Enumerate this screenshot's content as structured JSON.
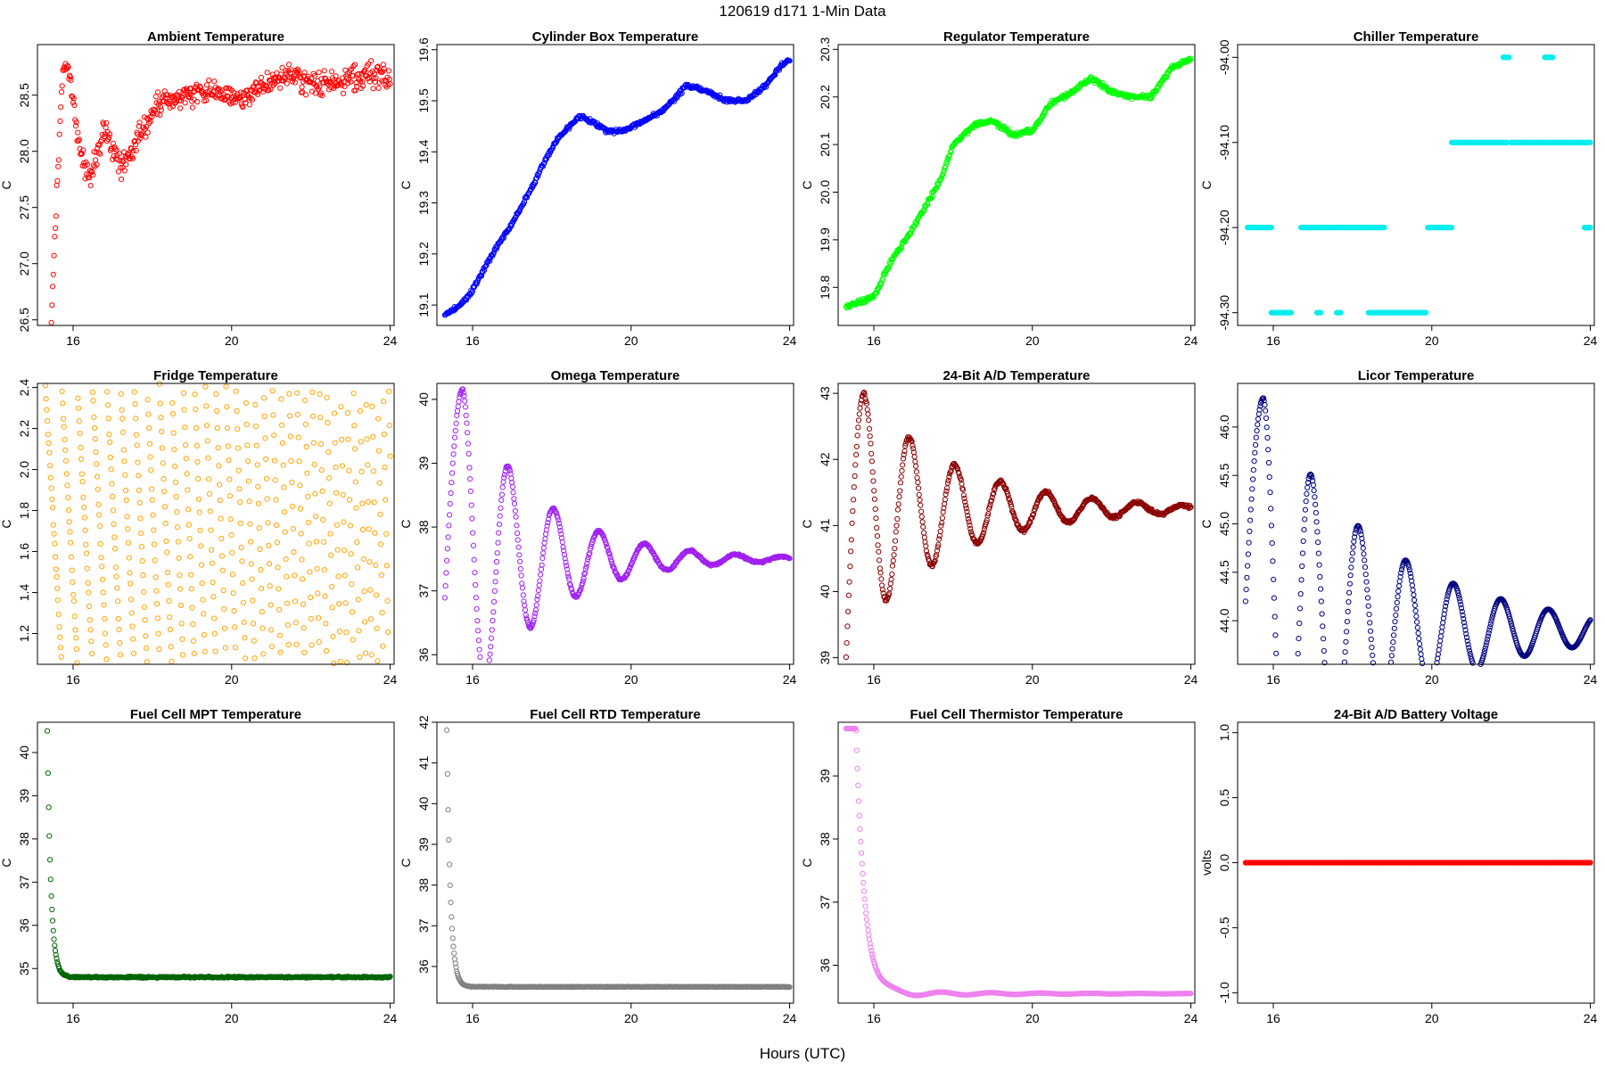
{
  "figure": {
    "title": "120619   d171   1-Min Data",
    "xlabel": "Hours (UTC)"
  },
  "chart_data": [
    {
      "type": "scatter",
      "title": "Ambient Temperature",
      "ylabel": "C",
      "color": "#ff0000",
      "xlim": [
        15.1,
        24.1
      ],
      "ylim": [
        26.45,
        28.95
      ],
      "xticks": [
        16,
        20,
        24
      ],
      "yticks": [
        26.5,
        27.0,
        27.5,
        28.0,
        28.5
      ],
      "ytick_labels": [
        "26.5",
        "27.0",
        "27.5",
        "28.0",
        "28.5"
      ],
      "points": [
        [
          15.45,
          26.55
        ],
        [
          15.48,
          26.75
        ],
        [
          15.52,
          27.05
        ],
        [
          15.56,
          27.4
        ],
        [
          15.6,
          27.75
        ],
        [
          15.65,
          28.1
        ],
        [
          15.7,
          28.5
        ],
        [
          15.75,
          28.72
        ],
        [
          15.85,
          28.8
        ],
        [
          15.95,
          28.6
        ],
        [
          16.05,
          28.3
        ],
        [
          16.2,
          28.0
        ],
        [
          16.3,
          27.8
        ],
        [
          16.45,
          27.75
        ],
        [
          16.6,
          28.0
        ],
        [
          16.8,
          28.2
        ],
        [
          17.0,
          28.05
        ],
        [
          17.2,
          27.85
        ],
        [
          17.4,
          27.95
        ],
        [
          17.6,
          28.1
        ],
        [
          17.8,
          28.2
        ],
        [
          18.0,
          28.35
        ],
        [
          18.3,
          28.45
        ],
        [
          18.6,
          28.5
        ],
        [
          19.0,
          28.5
        ],
        [
          19.4,
          28.55
        ],
        [
          19.8,
          28.5
        ],
        [
          20.2,
          28.45
        ],
        [
          20.6,
          28.55
        ],
        [
          21.0,
          28.6
        ],
        [
          21.4,
          28.68
        ],
        [
          21.8,
          28.62
        ],
        [
          22.2,
          28.6
        ],
        [
          22.6,
          28.62
        ],
        [
          23.0,
          28.65
        ],
        [
          23.4,
          28.68
        ],
        [
          23.8,
          28.7
        ],
        [
          24.0,
          28.6
        ]
      ],
      "noise": 0.13,
      "n": 500
    },
    {
      "type": "scatter",
      "title": "Cylinder Box Temperature",
      "ylabel": "C",
      "color": "#0000ff",
      "xlim": [
        15.1,
        24.1
      ],
      "ylim": [
        19.06,
        19.61
      ],
      "xticks": [
        16,
        20,
        24
      ],
      "yticks": [
        19.1,
        19.2,
        19.3,
        19.4,
        19.5,
        19.6
      ],
      "ytick_labels": [
        "19.1",
        "19.2",
        "19.3",
        "19.4",
        "19.5",
        "19.6"
      ],
      "points": [
        [
          15.3,
          19.08
        ],
        [
          15.7,
          19.1
        ],
        [
          16.0,
          19.13
        ],
        [
          16.5,
          19.2
        ],
        [
          17.0,
          19.26
        ],
        [
          17.5,
          19.33
        ],
        [
          17.8,
          19.38
        ],
        [
          18.2,
          19.43
        ],
        [
          18.7,
          19.47
        ],
        [
          19.0,
          19.46
        ],
        [
          19.4,
          19.44
        ],
        [
          19.8,
          19.44
        ],
        [
          20.3,
          19.46
        ],
        [
          20.8,
          19.48
        ],
        [
          21.4,
          19.53
        ],
        [
          21.9,
          19.52
        ],
        [
          22.4,
          19.5
        ],
        [
          22.9,
          19.5
        ],
        [
          23.4,
          19.53
        ],
        [
          23.8,
          19.57
        ],
        [
          24.0,
          19.58
        ]
      ],
      "noise": 0.005,
      "n": 500
    },
    {
      "type": "scatter",
      "title": "Regulator Temperature",
      "ylabel": "C",
      "color": "#00ff00",
      "xlim": [
        15.1,
        24.1
      ],
      "ylim": [
        19.72,
        20.31
      ],
      "xticks": [
        16,
        20,
        24
      ],
      "yticks": [
        19.8,
        19.9,
        20.0,
        20.1,
        20.2,
        20.3
      ],
      "ytick_labels": [
        "19.8",
        "19.9",
        "20.0",
        "20.1",
        "20.2",
        "20.3"
      ],
      "points": [
        [
          15.3,
          19.76
        ],
        [
          15.7,
          19.77
        ],
        [
          16.0,
          19.78
        ],
        [
          16.4,
          19.85
        ],
        [
          16.8,
          19.9
        ],
        [
          17.3,
          19.97
        ],
        [
          17.7,
          20.03
        ],
        [
          18.0,
          20.1
        ],
        [
          18.5,
          20.14
        ],
        [
          19.0,
          20.15
        ],
        [
          19.5,
          20.12
        ],
        [
          20.0,
          20.13
        ],
        [
          20.5,
          20.19
        ],
        [
          21.0,
          20.21
        ],
        [
          21.5,
          20.24
        ],
        [
          22.0,
          20.21
        ],
        [
          22.5,
          20.2
        ],
        [
          23.0,
          20.2
        ],
        [
          23.5,
          20.26
        ],
        [
          24.0,
          20.28
        ]
      ],
      "noise": 0.006,
      "n": 500
    },
    {
      "type": "scatter",
      "title": "Chiller Temperature",
      "ylabel": "C",
      "color": "#00eeee",
      "xlim": [
        15.1,
        24.1
      ],
      "ylim": [
        -94.315,
        -93.985
      ],
      "xticks": [
        16,
        20,
        24
      ],
      "yticks": [
        -94.0,
        -94.1,
        -94.2,
        -94.3
      ],
      "ytick_labels": [
        "-94.00",
        "-94.10",
        "-94.20",
        "-94.30"
      ],
      "segments": [
        {
          "y": -94.2,
          "x": [
            [
              15.35,
              15.95
            ],
            [
              16.7,
              18.8
            ],
            [
              19.9,
              20.5
            ],
            [
              23.85,
              24.0
            ]
          ]
        },
        {
          "y": -94.3,
          "x": [
            [
              15.95,
              16.45
            ],
            [
              17.1,
              17.2
            ],
            [
              17.6,
              17.7
            ],
            [
              18.4,
              19.85
            ]
          ]
        },
        {
          "y": -94.1,
          "x": [
            [
              20.5,
              21.9
            ],
            [
              22.0,
              24.0
            ]
          ]
        },
        {
          "y": -94.0,
          "x": [
            [
              21.8,
              21.95
            ],
            [
              22.85,
              23.05
            ]
          ]
        }
      ]
    },
    {
      "type": "scatter",
      "title": "Fridge Temperature",
      "ylabel": "C",
      "color": "#ffa500",
      "xlim": [
        15.1,
        24.1
      ],
      "ylim": [
        1.05,
        2.42
      ],
      "xticks": [
        16,
        20,
        24
      ],
      "yticks": [
        1.2,
        1.4,
        1.6,
        1.8,
        2.0,
        2.2,
        2.4
      ],
      "ytick_labels": [
        "1.2",
        "1.4",
        "1.6",
        "1.8",
        "2.0",
        "2.2",
        "2.4"
      ],
      "pattern": "sawtooth",
      "low": 1.05,
      "high": 2.4,
      "n": 520
    },
    {
      "type": "scatter",
      "title": "Omega Temperature",
      "ylabel": "C",
      "color": "#a020f0",
      "xlim": [
        15.1,
        24.1
      ],
      "ylim": [
        35.85,
        40.25
      ],
      "xticks": [
        16,
        20,
        24
      ],
      "yticks": [
        36,
        37,
        38,
        39,
        40
      ],
      "ytick_labels": [
        "36",
        "37",
        "38",
        "39",
        "40"
      ],
      "pattern": "ringing",
      "t0": 15.3,
      "y0": 36.9,
      "peak_t": 15.75,
      "peak": 40.15,
      "final": 37.5,
      "amp": 2.65,
      "period": 1.15,
      "decay": 1.9,
      "noise": 0.02,
      "n": 520
    },
    {
      "type": "scatter",
      "title": "24-Bit A/D Temperature",
      "ylabel": "C",
      "color": "#8b0000",
      "xlim": [
        15.1,
        24.1
      ],
      "ylim": [
        38.9,
        43.15
      ],
      "xticks": [
        16,
        20,
        24
      ],
      "yticks": [
        39,
        40,
        41,
        42,
        43
      ],
      "ytick_labels": [
        "39",
        "40",
        "41",
        "42",
        "43"
      ],
      "pattern": "ringing",
      "t0": 15.3,
      "y0": 39.0,
      "peak_t": 15.75,
      "peak": 43.0,
      "final": 41.25,
      "amp": 1.75,
      "period": 1.15,
      "decay": 2.4,
      "noise": 0.03,
      "n": 520
    },
    {
      "type": "scatter",
      "title": "Licor Temperature",
      "ylabel": "C",
      "color": "#000080",
      "xlim": [
        15.1,
        24.1
      ],
      "ylim": [
        43.55,
        46.45
      ],
      "xticks": [
        16,
        20,
        24
      ],
      "yticks": [
        44.0,
        44.5,
        45.0,
        45.5,
        46.0
      ],
      "ytick_labels": [
        "44.0",
        "44.5",
        "45.0",
        "45.5",
        "46.0"
      ],
      "pattern": "ringing",
      "t0": 15.3,
      "y0": 44.2,
      "peak_t": 15.75,
      "peak": 46.3,
      "final": 43.9,
      "amp": 2.4,
      "period": 1.2,
      "decay": 3.0,
      "noise": 0.0,
      "n": 520
    },
    {
      "type": "scatter",
      "title": "Fuel Cell MPT Temperature",
      "ylabel": "C",
      "color": "#006400",
      "xlim": [
        15.1,
        24.1
      ],
      "ylim": [
        34.2,
        40.7
      ],
      "xticks": [
        16,
        20,
        24
      ],
      "yticks": [
        35,
        36,
        37,
        38,
        39,
        40
      ],
      "ytick_labels": [
        "35",
        "36",
        "37",
        "38",
        "39",
        "40"
      ],
      "pattern": "decay",
      "t0": 15.35,
      "y0": 40.5,
      "final": 34.8,
      "tau": 0.09,
      "n": 520,
      "noise": 0.02
    },
    {
      "type": "scatter",
      "title": "Fuel Cell RTD Temperature",
      "ylabel": "C",
      "color": "#808080",
      "xlim": [
        15.1,
        24.1
      ],
      "ylim": [
        35.1,
        42.0
      ],
      "xticks": [
        16,
        20,
        24
      ],
      "yticks": [
        36,
        37,
        38,
        39,
        40,
        41,
        42
      ],
      "ytick_labels": [
        "36",
        "37",
        "38",
        "39",
        "40",
        "41",
        "42"
      ],
      "pattern": "decay",
      "t0": 15.35,
      "y0": 41.8,
      "final": 35.5,
      "tau": 0.09,
      "n": 520,
      "noise": 0.01
    },
    {
      "type": "scatter",
      "title": "Fuel Cell Thermistor Temperature",
      "ylabel": "C",
      "color": "#ee82ee",
      "xlim": [
        15.1,
        24.1
      ],
      "ylim": [
        35.4,
        39.85
      ],
      "xticks": [
        16,
        20,
        24
      ],
      "yticks": [
        36,
        37,
        38,
        39
      ],
      "ytick_labels": [
        "36",
        "37",
        "38",
        "39"
      ],
      "pattern": "thermistor",
      "t0": 15.3,
      "y0": 39.75,
      "final": 35.55,
      "n": 520
    },
    {
      "type": "scatter",
      "title": "24-Bit A/D Battery Voltage",
      "ylabel": "volts",
      "color": "#ff0000",
      "xlim": [
        15.1,
        24.1
      ],
      "ylim": [
        -1.08,
        1.08
      ],
      "xticks": [
        16,
        20,
        24
      ],
      "yticks": [
        -1.0,
        -0.5,
        0.0,
        0.5,
        1.0
      ],
      "ytick_labels": [
        "-1.0",
        "-0.5",
        "0.0",
        "0.5",
        "1.0"
      ],
      "pattern": "constant",
      "value": 0.0,
      "t0": 15.3,
      "n": 520
    }
  ]
}
